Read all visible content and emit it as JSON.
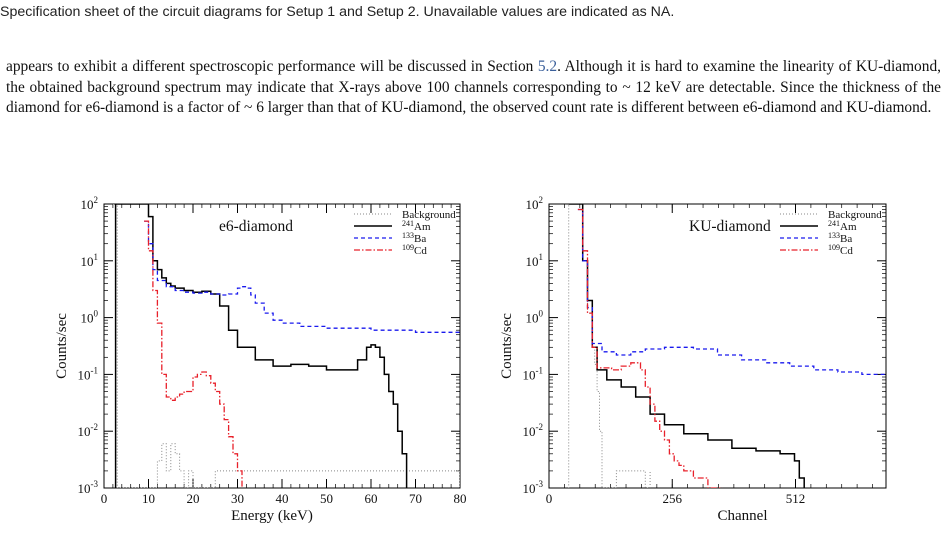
{
  "caption_top": "Specification sheet of the circuit diagrams for Setup 1 and Setup 2. Unavailable values are indicated as NA.",
  "paragraph": {
    "part1": "appears to exhibit a different spectroscopic performance will be discussed in Section ",
    "ref": "5.2",
    "part2": ". Although it is hard to examine the linearity of KU-diamond, the obtained background spectrum may indicate that X-rays above 100 channels corresponding to ~ 12 keV are detectable. Since the thickness of the diamond for e6-diamond is a factor of ~ 6 larger than that of KU-diamond, the observed count rate is different between e6-diamond and KU-diamond."
  },
  "colors": {
    "background": "#888888",
    "am241": "#000000",
    "ba133": "#1a1aee",
    "cd109": "#e8202a"
  },
  "chart_data": [
    {
      "type": "line",
      "title": "e6-diamond",
      "xlabel": "Energy (keV)",
      "ylabel": "Counts/sec",
      "log_y": true,
      "xlim": [
        0,
        80
      ],
      "ylim": [
        0.001,
        100
      ],
      "x_ticks": [
        "0",
        "10",
        "20",
        "30",
        "40",
        "50",
        "60",
        "70",
        "80"
      ],
      "y_ticks": [
        "10^-3",
        "10^-2",
        "10^-1",
        "10^0",
        "10^1",
        "10^2"
      ],
      "legend_position": "top-right",
      "series": [
        {
          "name": "Background",
          "iso": "",
          "x": [
            2,
            3,
            10,
            11,
            12,
            13,
            14,
            15,
            16,
            17,
            18,
            19,
            20,
            25,
            35,
            55,
            80
          ],
          "y": [
            100,
            0.001,
            0.001,
            0.001,
            0.003,
            0.006,
            0.002,
            0.006,
            0.004,
            0.002,
            0.001,
            0.002,
            0.001,
            0.002,
            0.002,
            0.002,
            0.001
          ]
        },
        {
          "name": "Am",
          "iso": "241",
          "x": [
            2.5,
            2.6,
            9,
            10,
            11,
            12,
            13,
            14,
            15,
            16,
            18,
            20,
            22,
            24,
            26,
            28,
            30,
            34,
            38,
            42,
            46,
            50,
            54,
            57,
            59,
            60,
            61,
            62,
            63,
            64,
            65,
            66,
            67,
            68
          ],
          "y": [
            0.001,
            100,
            100,
            60,
            10,
            7,
            5,
            4,
            3.6,
            3.3,
            3,
            2.8,
            2.9,
            2.6,
            1.6,
            0.6,
            0.3,
            0.18,
            0.14,
            0.15,
            0.14,
            0.12,
            0.12,
            0.18,
            0.3,
            0.33,
            0.3,
            0.2,
            0.1,
            0.05,
            0.03,
            0.01,
            0.004,
            0.001
          ]
        },
        {
          "name": "Ba",
          "iso": "133",
          "x": [
            9,
            10,
            11,
            12,
            14,
            16,
            18,
            20,
            22,
            24,
            26,
            28,
            30,
            31,
            32,
            33,
            34,
            36,
            38,
            40,
            44,
            50,
            60,
            70,
            80
          ],
          "y": [
            50,
            20,
            7,
            4.5,
            3.5,
            3,
            2.8,
            2.7,
            2.8,
            2.6,
            2.5,
            2.6,
            3.3,
            3.5,
            3.3,
            2.5,
            1.8,
            1.2,
            0.9,
            0.8,
            0.7,
            0.65,
            0.6,
            0.55,
            0.5
          ]
        },
        {
          "name": "Cd",
          "iso": "109",
          "x": [
            9,
            10,
            11,
            12,
            13,
            14,
            15,
            16,
            17,
            18,
            20,
            21,
            22,
            23,
            24,
            25,
            26,
            27,
            28,
            29,
            30,
            31
          ],
          "y": [
            50,
            15,
            3,
            0.8,
            0.1,
            0.04,
            0.035,
            0.04,
            0.045,
            0.05,
            0.09,
            0.1,
            0.11,
            0.095,
            0.07,
            0.05,
            0.03,
            0.016,
            0.008,
            0.004,
            0.002,
            0.001
          ]
        }
      ]
    },
    {
      "type": "line",
      "title": "KU-diamond",
      "xlabel": "Channel",
      "ylabel": "Counts/sec",
      "log_y": true,
      "xlim": [
        0,
        700
      ],
      "ylim": [
        0.001,
        100
      ],
      "x_ticks": [
        "0",
        "256",
        "512"
      ],
      "x_tick_values": [
        0,
        256,
        512
      ],
      "y_ticks": [
        "10^-3",
        "10^-2",
        "10^-1",
        "10^0",
        "10^1",
        "10^2"
      ],
      "legend_position": "top-right",
      "series": [
        {
          "name": "Background",
          "iso": "",
          "x": [
            40,
            41,
            60,
            70,
            80,
            90,
            95,
            100,
            105,
            110,
            130,
            140,
            200,
            210
          ],
          "y": [
            0.001,
            100,
            100,
            10,
            1.2,
            0.3,
            0.15,
            0.05,
            0.01,
            0.001,
            0.001,
            0.002,
            0.001,
            0.002
          ]
        },
        {
          "name": "Am",
          "iso": "241",
          "x": [
            41,
            60,
            70,
            80,
            90,
            100,
            120,
            150,
            180,
            210,
            240,
            280,
            330,
            380,
            430,
            480,
            510,
            520,
            530
          ],
          "y": [
            100,
            100,
            10,
            2,
            0.3,
            0.12,
            0.08,
            0.06,
            0.04,
            0.02,
            0.013,
            0.009,
            0.007,
            0.005,
            0.0045,
            0.004,
            0.003,
            0.0015,
            0.001
          ]
        },
        {
          "name": "Ba",
          "iso": "133",
          "x": [
            60,
            70,
            80,
            90,
            110,
            140,
            170,
            200,
            240,
            300,
            350,
            400,
            450,
            500,
            550,
            600,
            650,
            700
          ],
          "y": [
            80,
            10,
            1.5,
            0.35,
            0.25,
            0.22,
            0.25,
            0.28,
            0.3,
            0.28,
            0.22,
            0.18,
            0.16,
            0.14,
            0.12,
            0.11,
            0.1,
            0.1
          ]
        },
        {
          "name": "Cd",
          "iso": "109",
          "x": [
            60,
            70,
            80,
            90,
            100,
            130,
            150,
            170,
            190,
            200,
            210,
            220,
            230,
            240,
            250,
            260,
            270,
            280,
            300,
            330,
            360
          ],
          "y": [
            80,
            15,
            1.2,
            0.3,
            0.13,
            0.12,
            0.14,
            0.16,
            0.12,
            0.06,
            0.03,
            0.015,
            0.01,
            0.007,
            0.004,
            0.003,
            0.0025,
            0.002,
            0.0015,
            0.001,
            0.001
          ]
        }
      ]
    }
  ]
}
